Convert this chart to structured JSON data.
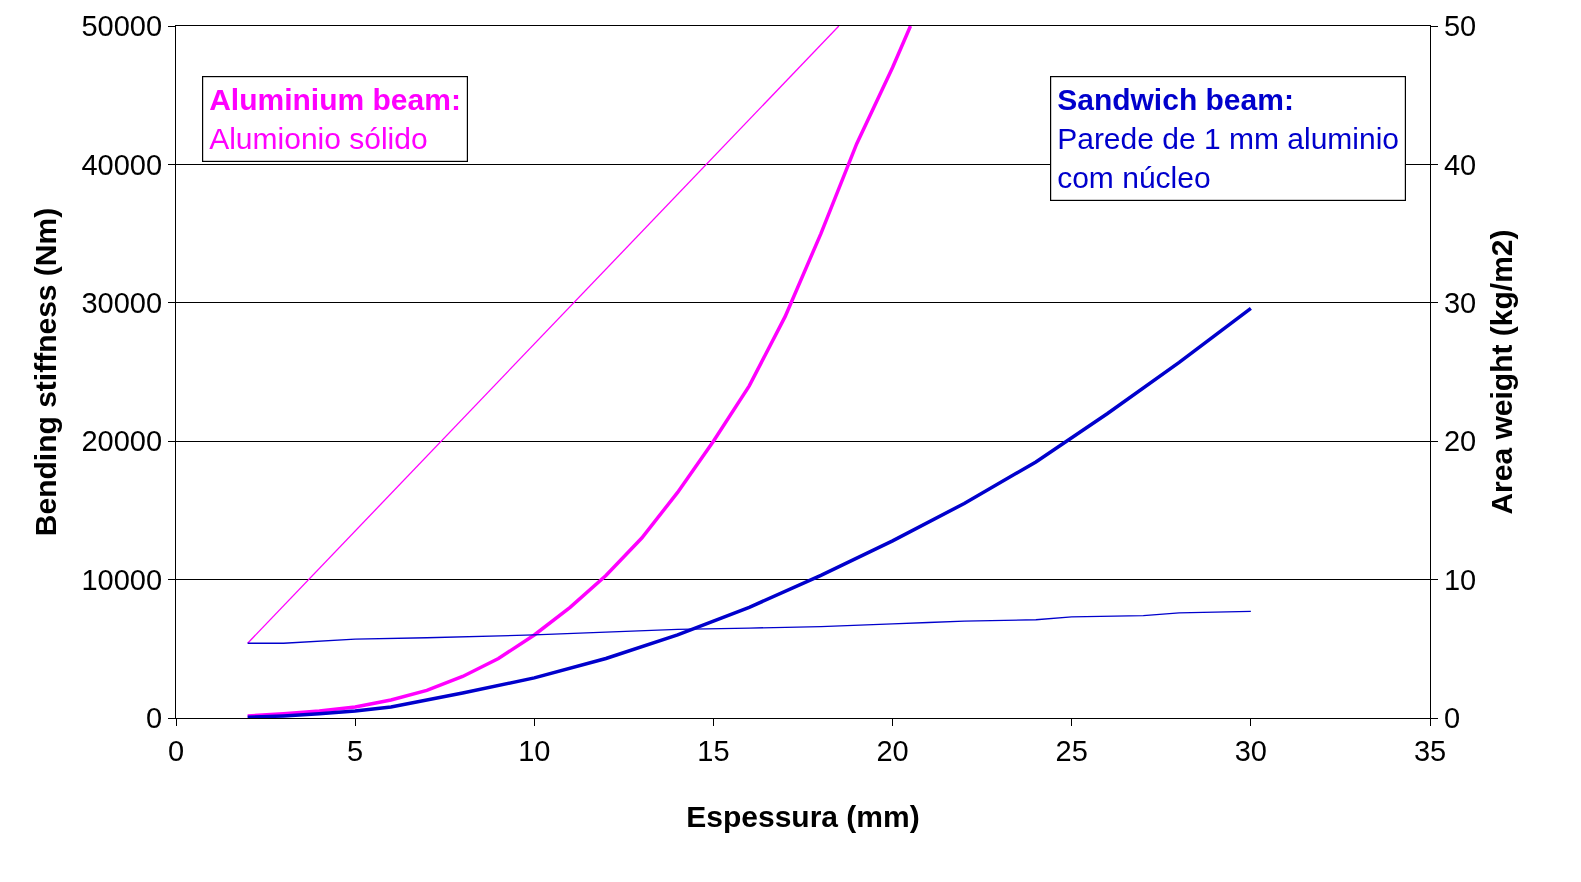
{
  "chart_data": {
    "type": "line",
    "xlabel": "Espessura (mm)",
    "ylabel": "Bending stiffness (Nm)",
    "y2label": "Area weight (kg/m2)",
    "xlim": [
      0,
      35
    ],
    "xticks": [
      0,
      5,
      10,
      15,
      20,
      25,
      30,
      35
    ],
    "ylim": [
      0,
      50000
    ],
    "yticks": [
      0,
      10000,
      20000,
      30000,
      40000,
      50000
    ],
    "y2lim": [
      0,
      50
    ],
    "y2ticks": [
      0,
      10,
      20,
      30,
      40,
      50
    ],
    "grid": "y",
    "marker": "none",
    "series": [
      {
        "color": "#ff00ff",
        "x": [
          2,
          3,
          4,
          5,
          6,
          7,
          8,
          9,
          10,
          11,
          12,
          13,
          14,
          15,
          16,
          17,
          18,
          19,
          20,
          20.5
        ],
        "values": [
          150,
          300,
          500,
          800,
          1300,
          2000,
          3000,
          4300,
          6000,
          8000,
          10300,
          13000,
          16300,
          20000,
          24000,
          29000,
          35000,
          41500,
          47000,
          50000
        ]
      },
      {
        "color": "#ff00ff",
        "axis": "y2",
        "x": [
          2,
          18.5
        ],
        "values": [
          5.4,
          50
        ]
      },
      {
        "color": "#0000cc",
        "x": [
          2,
          3,
          4,
          5,
          6,
          8,
          10,
          12,
          14,
          15,
          16,
          18,
          20,
          22,
          24,
          26,
          28,
          30
        ],
        "values": [
          50,
          150,
          300,
          500,
          800,
          1800,
          2900,
          4300,
          6000,
          7000,
          8000,
          10300,
          12800,
          15500,
          18500,
          22000,
          25700,
          29600
        ]
      },
      {
        "color": "#0000cc",
        "axis": "y2",
        "x": [
          2,
          3,
          5,
          7,
          10,
          12,
          14,
          16,
          18,
          20,
          21,
          22,
          24,
          25,
          27,
          28,
          30
        ],
        "values": [
          5.4,
          5.4,
          5.7,
          5.8,
          6.0,
          6.2,
          6.4,
          6.5,
          6.6,
          6.8,
          6.9,
          7.0,
          7.1,
          7.3,
          7.4,
          7.6,
          7.7
        ]
      }
    ],
    "annotations": [
      "Aluminium beam:\nAlumionio sólido",
      "Sandwich beam:\nParede de 1 mm aluminio\ncom núcleo"
    ]
  }
}
